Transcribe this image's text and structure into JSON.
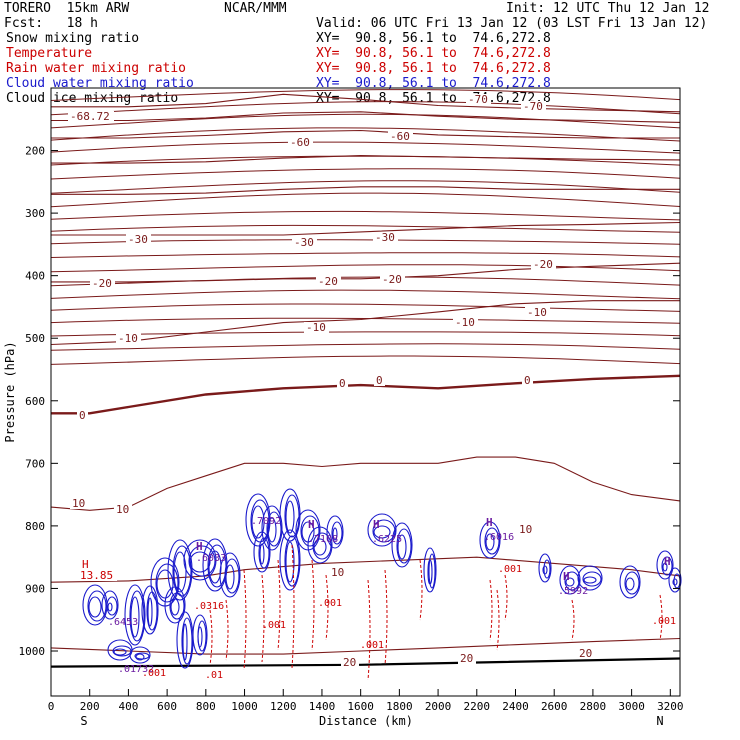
{
  "header": {
    "model": "TORERO  15km ARW",
    "center": "NCAR/MMM",
    "init": "Init: 12 UTC Thu 12 Jan 12",
    "fcst": "Fcst:   18 h",
    "valid": "Valid: 06 UTC Fri 13 Jan 12 (03 LST Fri 13 Jan 12)"
  },
  "colors": {
    "snow": "#000000",
    "temperature": "#7a1a1a",
    "rain": "#cc0000",
    "cloud_water": "#1a1acc",
    "cloud_ice": "#000000",
    "axes": "#000000"
  },
  "legend": [
    {
      "name": "Snow mixing ratio",
      "xy": "XY=  90.8, 56.1 to  74.6,272.8",
      "color": "#000000"
    },
    {
      "name": "Temperature",
      "xy": "XY=  90.8, 56.1 to  74.6,272.8",
      "color": "#cc0000"
    },
    {
      "name": "Rain water mixing ratio",
      "xy": "XY=  90.8, 56.1 to  74.6,272.8",
      "color": "#cc0000"
    },
    {
      "name": "Cloud water mixing ratio",
      "xy": "XY=  90.8, 56.1 to  74.6,272.8",
      "color": "#1a1acc"
    },
    {
      "name": "Cloud ice mixing ratio",
      "xy": "XY=  90.8, 56.1 to  74.6,272.8",
      "color": "#000000"
    }
  ],
  "chart_data": {
    "type": "line",
    "title": "",
    "xlabel": "Distance (km)",
    "ylabel": "Pressure (hPa)",
    "xlim": [
      0,
      3250
    ],
    "ylim": [
      1050,
      100
    ],
    "xticks": [
      0,
      200,
      400,
      600,
      800,
      1000,
      1200,
      1400,
      1600,
      1800,
      2000,
      2200,
      2400,
      2600,
      2800,
      3000,
      3200
    ],
    "yticks": [
      200,
      300,
      400,
      500,
      600,
      700,
      800,
      900,
      1000
    ],
    "x_end_labels": [
      "S",
      "N"
    ],
    "grid": false,
    "isotherms": [
      {
        "temp": -60,
        "x": [
          0,
          400,
          800,
          1200,
          1600,
          2000,
          2400,
          2800,
          3250
        ],
        "p": [
          130,
          130,
          125,
          110,
          118,
          128,
          132,
          135,
          138
        ]
      },
      {
        "temp": -60,
        "x": [
          0,
          400,
          800,
          1200,
          1600,
          2000,
          2400,
          2800,
          3250
        ],
        "p": [
          152,
          152,
          148,
          140,
          138,
          145,
          150,
          152,
          155
        ]
      },
      {
        "temp": -50,
        "x": [
          0,
          400,
          800,
          1200,
          1600,
          2000,
          2400,
          2800,
          3250
        ],
        "p": [
          180,
          180,
          176,
          170,
          168,
          175,
          178,
          180,
          180
        ]
      },
      {
        "temp": -50,
        "x": [
          0,
          400,
          800,
          1200,
          1600,
          2000,
          2400,
          2800,
          3250
        ],
        "p": [
          220,
          220,
          218,
          212,
          208,
          210,
          212,
          214,
          215
        ]
      },
      {
        "temp": -40,
        "x": [
          0,
          400,
          800,
          1200,
          1600,
          2000,
          2400,
          2800,
          3250
        ],
        "p": [
          270,
          270,
          268,
          262,
          258,
          258,
          262,
          262,
          262
        ]
      },
      {
        "temp": -30,
        "x": [
          0,
          400,
          800,
          1200,
          1600,
          2000,
          2400,
          2800,
          3250
        ],
        "p": [
          335,
          335,
          335,
          335,
          330,
          325,
          320,
          318,
          315
        ]
      },
      {
        "temp": -20,
        "x": [
          0,
          400,
          800,
          1200,
          1600,
          2000,
          2400,
          2800,
          3250
        ],
        "p": [
          410,
          410,
          408,
          405,
          405,
          400,
          390,
          385,
          380
        ]
      },
      {
        "temp": -10,
        "x": [
          0,
          400,
          800,
          1200,
          1600,
          2000,
          2400,
          2800,
          3250
        ],
        "p": [
          510,
          505,
          490,
          475,
          470,
          458,
          445,
          440,
          440
        ]
      },
      {
        "temp": 0,
        "x": [
          0,
          200,
          400,
          800,
          1200,
          1600,
          2000,
          2400,
          2800,
          3250
        ],
        "p": [
          620,
          620,
          610,
          590,
          580,
          575,
          580,
          572,
          565,
          560
        ]
      },
      {
        "temp": 10,
        "x": [
          0,
          200,
          400,
          600,
          800,
          1000,
          1200,
          1400,
          1600,
          1800,
          2000,
          2200,
          2400,
          2600,
          2800,
          3000,
          3250
        ],
        "p": [
          770,
          775,
          770,
          740,
          720,
          700,
          700,
          705,
          700,
          700,
          700,
          690,
          690,
          700,
          730,
          750,
          760
        ]
      },
      {
        "temp": 10,
        "x": [
          0,
          400,
          800,
          1000,
          1400,
          1800,
          2200,
          2600,
          3000,
          3250
        ],
        "p": [
          890,
          888,
          880,
          870,
          860,
          855,
          850,
          860,
          870,
          880
        ]
      },
      {
        "temp": 20,
        "x": [
          0,
          400,
          800,
          1200,
          1600,
          2000,
          2400,
          2800,
          3250
        ],
        "p": [
          995,
          1000,
          1005,
          1005,
          1000,
          995,
          990,
          985,
          980
        ]
      }
    ],
    "value_labels": [
      "-60",
      "-60",
      "-60",
      "-70",
      "-30",
      "-30",
      "-30",
      "-20",
      "-20",
      "-20",
      "-20",
      "-10",
      "-10",
      "-10",
      "0",
      "0",
      "0",
      "0",
      "10",
      "10",
      "10",
      "20",
      "20",
      "-68.72",
      "13.85",
      "H"
    ],
    "mixing_labels": [
      ".001",
      ".001",
      ".001",
      ".001",
      ".001",
      ".001",
      ".01"
    ],
    "cloud_maxima": [
      ".7092",
      ".7108",
      ".6225",
      ".5992",
      ".6453",
      ".6033",
      ".01732"
    ]
  }
}
